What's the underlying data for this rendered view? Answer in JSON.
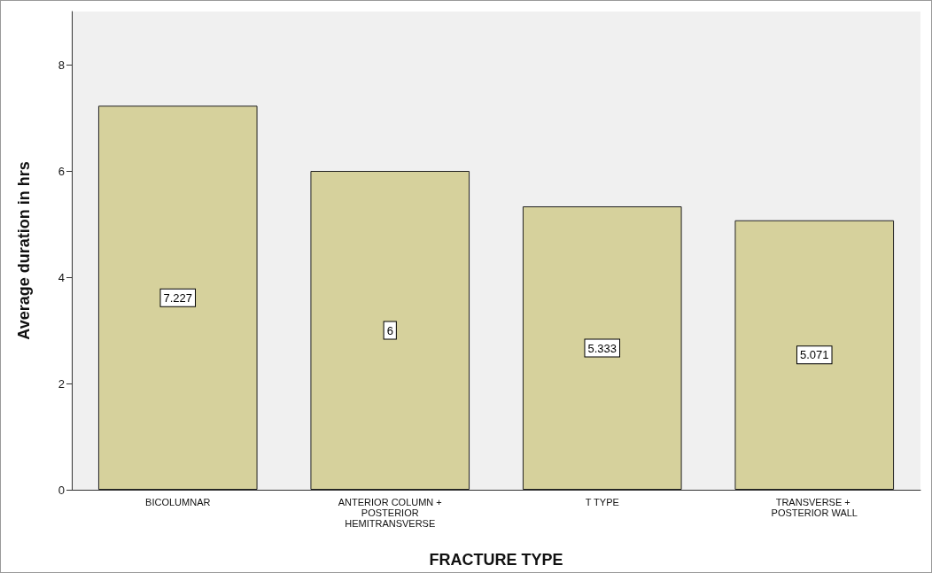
{
  "chart_data": {
    "type": "bar",
    "xlabel": "FRACTURE TYPE",
    "ylabel": "Average duration in hrs",
    "categories": [
      "BICOLUMNAR",
      "ANTERIOR COLUMN + POSTERIOR HEMITRANSVERSE",
      "T TYPE",
      "TRANSVERSE + POSTERIOR WALL"
    ],
    "values": [
      7.227,
      6,
      5.333,
      5.071
    ],
    "color": "#d6d19c",
    "ylim": [
      0,
      9
    ],
    "yticks": [
      0,
      2,
      4,
      6,
      8
    ],
    "grid": false,
    "data_labels": true
  }
}
